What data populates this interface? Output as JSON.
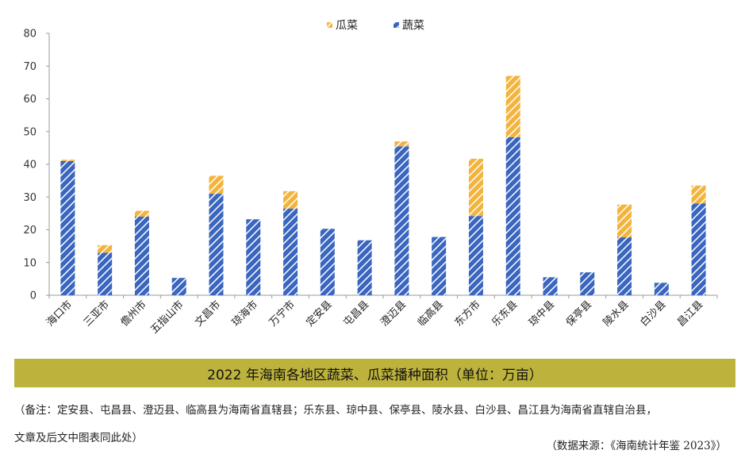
{
  "chart_data": {
    "type": "bar",
    "stacked": true,
    "title": "2022 年海南各地区蔬菜、瓜菜播种面积（单位：万亩）",
    "categories": [
      "海口市",
      "三亚市",
      "儋州市",
      "五指山市",
      "文昌市",
      "琼海市",
      "万宁市",
      "定安县",
      "屯昌县",
      "澄迈县",
      "临高县",
      "东方市",
      "乐东县",
      "琼中县",
      "保亭县",
      "陵水县",
      "白沙县",
      "昌江县"
    ],
    "series": [
      {
        "name": "蔬菜",
        "color": "#3a66c0",
        "values": [
          41.0,
          13.0,
          24.0,
          5.3,
          31.0,
          23.2,
          26.5,
          20.3,
          16.8,
          45.5,
          17.8,
          24.2,
          48.3,
          5.5,
          7.0,
          17.7,
          3.8,
          28.0
        ]
      },
      {
        "name": "瓜菜",
        "color": "#f3b43d",
        "values": [
          0.4,
          2.3,
          1.8,
          0.0,
          5.5,
          0.0,
          5.3,
          0.0,
          0.0,
          1.5,
          0.0,
          17.5,
          18.7,
          0.0,
          0.0,
          10.0,
          0.0,
          5.5
        ]
      }
    ],
    "legend": [
      {
        "name": "瓜菜",
        "color": "#f3b43d"
      },
      {
        "name": "蔬菜",
        "color": "#3a66c0"
      }
    ],
    "legend_position": "top-center",
    "ylim": [
      0,
      80
    ],
    "yticks": [
      0,
      10,
      20,
      30,
      40,
      50,
      60,
      70,
      80
    ],
    "grid": false
  },
  "note": "（备注：定安县、屯昌县、澄迈县、临高县为海南省直辖县；乐东县、琼中县、保亭县、陵水县、白沙县、昌江县为海南省直辖自治县，",
  "note_cont": "文章及后文中图表同此处）",
  "source": "（数据来源：《海南统计年鉴 2023》）"
}
